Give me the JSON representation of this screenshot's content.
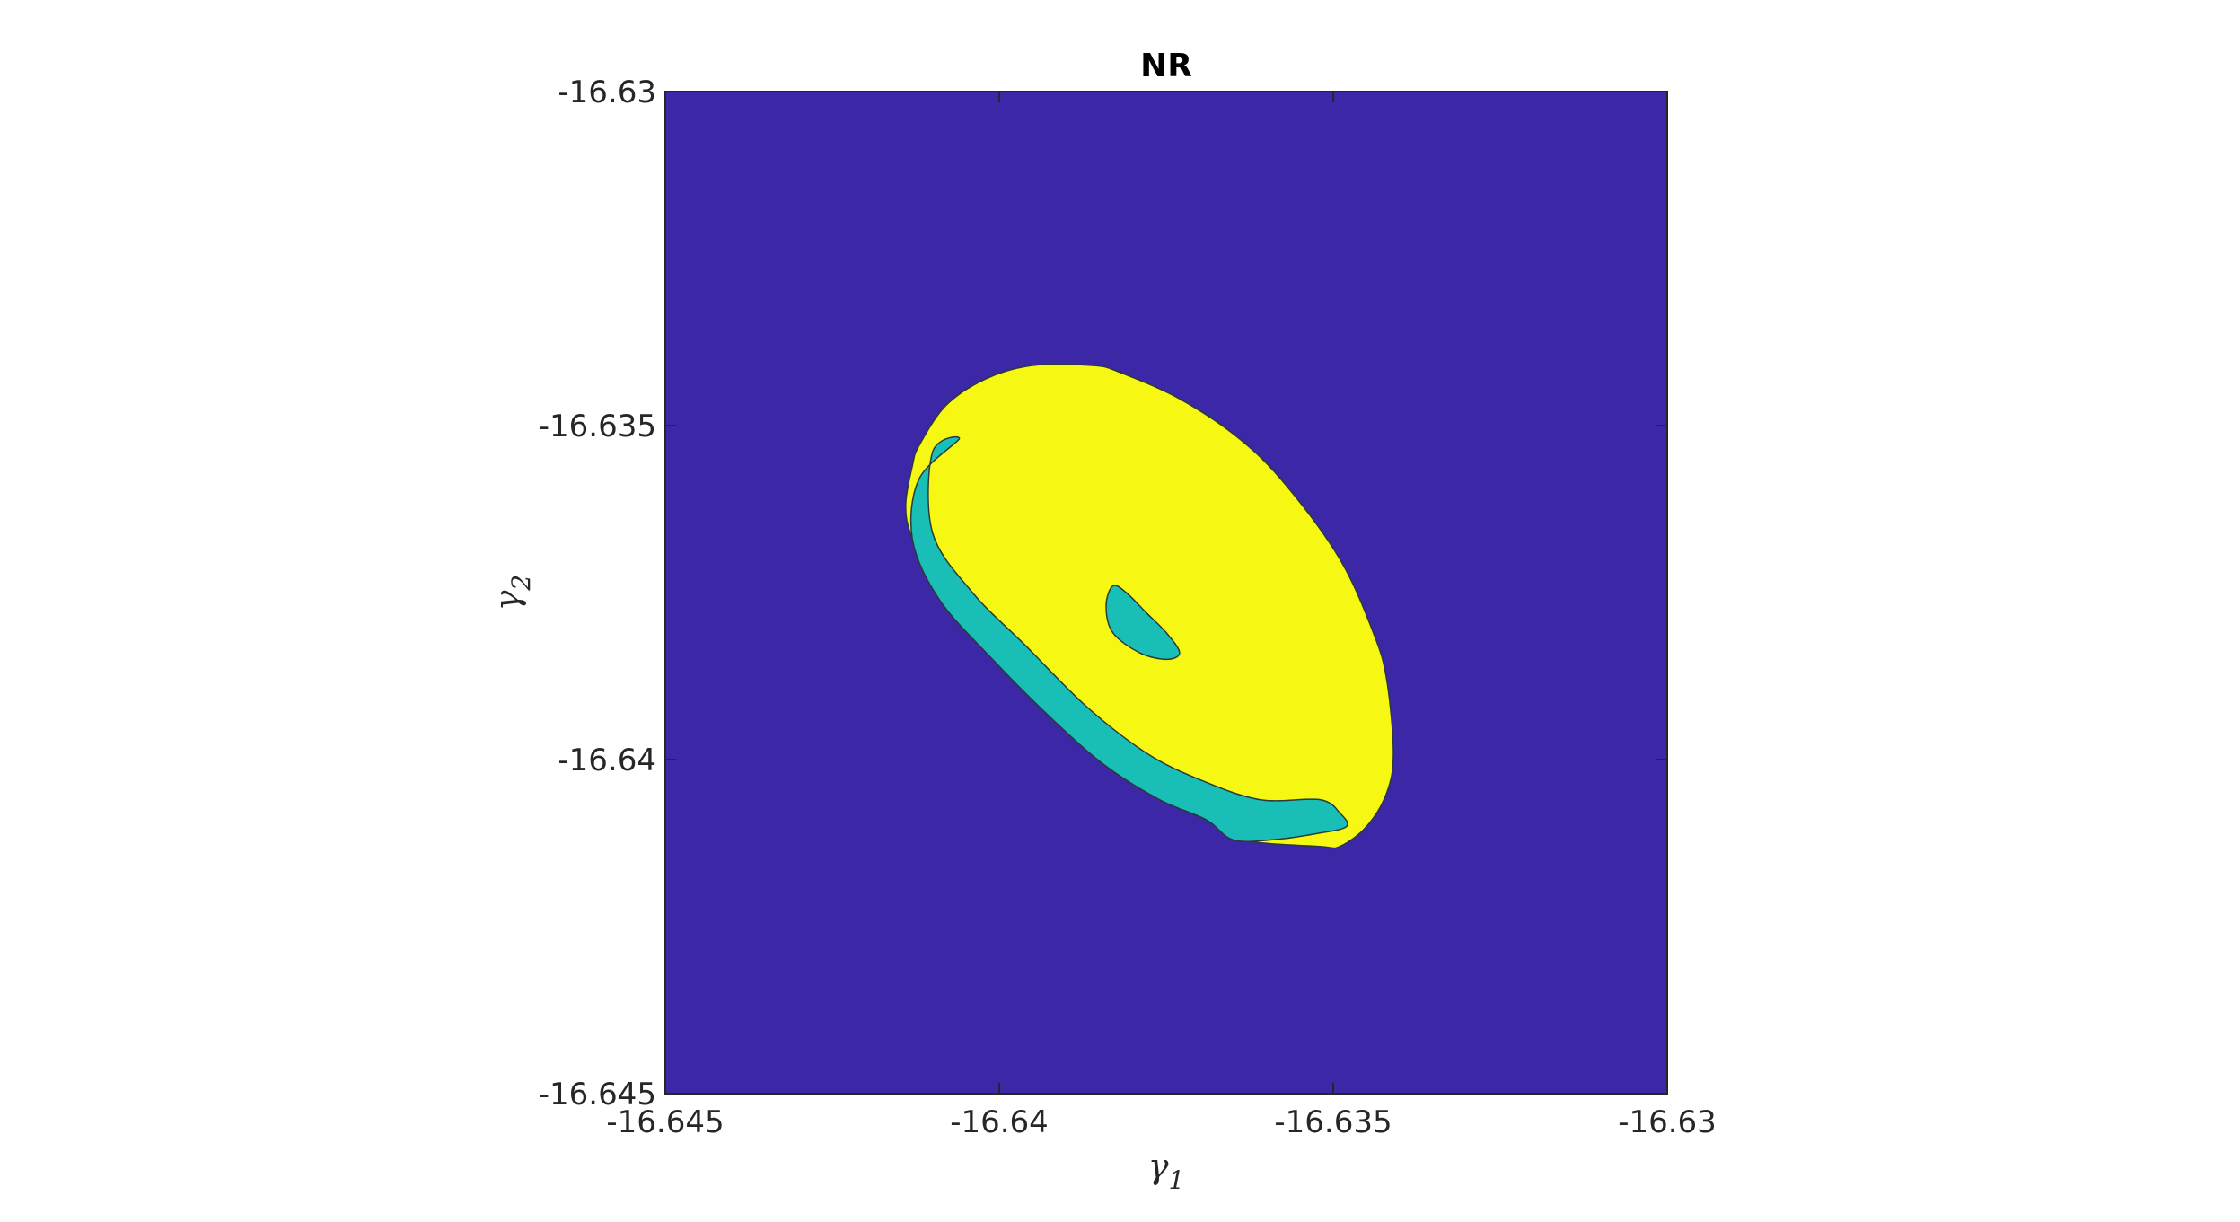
{
  "chart_data": {
    "type": "heatmap",
    "title": "NR",
    "xlabel": {
      "symbol": "γ",
      "subscript": "1"
    },
    "ylabel": {
      "symbol": "γ",
      "subscript": "2"
    },
    "xlim": [
      -16.645,
      -16.63
    ],
    "ylim": [
      -16.645,
      -16.63
    ],
    "x_ticks": [
      -16.645,
      -16.64,
      -16.635,
      -16.63
    ],
    "x_tick_labels": [
      "-16.645",
      "-16.64",
      "-16.635",
      "-16.63"
    ],
    "y_ticks": [
      -16.63,
      -16.635,
      -16.64,
      -16.645
    ],
    "y_tick_labels": [
      "-16.63",
      "-16.635",
      "-16.64",
      "-16.645"
    ],
    "grid": false,
    "colors": {
      "background_region": "#3C27A6",
      "yellow_region": "#F6F814",
      "teal_region": "#19BFB7",
      "contour_line": "#2B3A3A"
    },
    "regions": [
      {
        "level": "yellow",
        "color": "#F6F814",
        "points": [
          [
            -16.6382,
            -16.6342
          ],
          [
            -16.6386,
            -16.6341
          ],
          [
            -16.6395,
            -16.6341
          ],
          [
            -16.6402,
            -16.6343
          ],
          [
            -16.6408,
            -16.6347
          ],
          [
            -16.6412,
            -16.6353
          ],
          [
            -16.6413,
            -16.6356
          ],
          [
            -16.6414,
            -16.6362
          ],
          [
            -16.6413,
            -16.6367
          ],
          [
            -16.6409,
            -16.6376
          ],
          [
            -16.6401,
            -16.6385
          ],
          [
            -16.6392,
            -16.6394
          ],
          [
            -16.6384,
            -16.6401
          ],
          [
            -16.6376,
            -16.6406
          ],
          [
            -16.6369,
            -16.6409
          ],
          [
            -16.6364,
            -16.6412
          ],
          [
            -16.6352,
            -16.6413
          ],
          [
            -16.6349,
            -16.6413
          ],
          [
            -16.6345,
            -16.641
          ],
          [
            -16.6342,
            -16.6405
          ],
          [
            -16.6341,
            -16.6399
          ],
          [
            -16.6342,
            -16.6388
          ],
          [
            -16.6344,
            -16.6381
          ],
          [
            -16.6349,
            -16.637
          ],
          [
            -16.6357,
            -16.6359
          ],
          [
            -16.6364,
            -16.6352
          ],
          [
            -16.6373,
            -16.6346
          ]
        ]
      },
      {
        "level": "teal",
        "color": "#19BFB7",
        "points": [
          [
            -16.6406,
            -16.6352
          ],
          [
            -16.641,
            -16.6354
          ],
          [
            -16.641,
            -16.6366
          ],
          [
            -16.6404,
            -16.6375
          ],
          [
            -16.6396,
            -16.6383
          ],
          [
            -16.6387,
            -16.6392
          ],
          [
            -16.6378,
            -16.6399
          ],
          [
            -16.637,
            -16.6403
          ],
          [
            -16.6361,
            -16.6406
          ],
          [
            -16.6352,
            -16.6406
          ],
          [
            -16.6349,
            -16.6408
          ],
          [
            -16.6348,
            -16.641
          ],
          [
            -16.6352,
            -16.6411
          ],
          [
            -16.6359,
            -16.6412
          ],
          [
            -16.6365,
            -16.6412
          ],
          [
            -16.6369,
            -16.6409
          ],
          [
            -16.6376,
            -16.6406
          ],
          [
            -16.6384,
            -16.6401
          ],
          [
            -16.6392,
            -16.6394
          ],
          [
            -16.6401,
            -16.6385
          ],
          [
            -16.6409,
            -16.6376
          ],
          [
            -16.6413,
            -16.6367
          ],
          [
            -16.6412,
            -16.6358
          ]
        ]
      },
      {
        "level": "teal",
        "color": "#19BFB7",
        "points": [
          [
            -16.6384,
            -16.6377
          ],
          [
            -16.6383,
            -16.6374
          ],
          [
            -16.6381,
            -16.6375
          ],
          [
            -16.6378,
            -16.6378
          ],
          [
            -16.6375,
            -16.6381
          ],
          [
            -16.6373,
            -16.6384
          ],
          [
            -16.6375,
            -16.6385
          ],
          [
            -16.6379,
            -16.6384
          ],
          [
            -16.6383,
            -16.6381
          ]
        ]
      }
    ]
  }
}
